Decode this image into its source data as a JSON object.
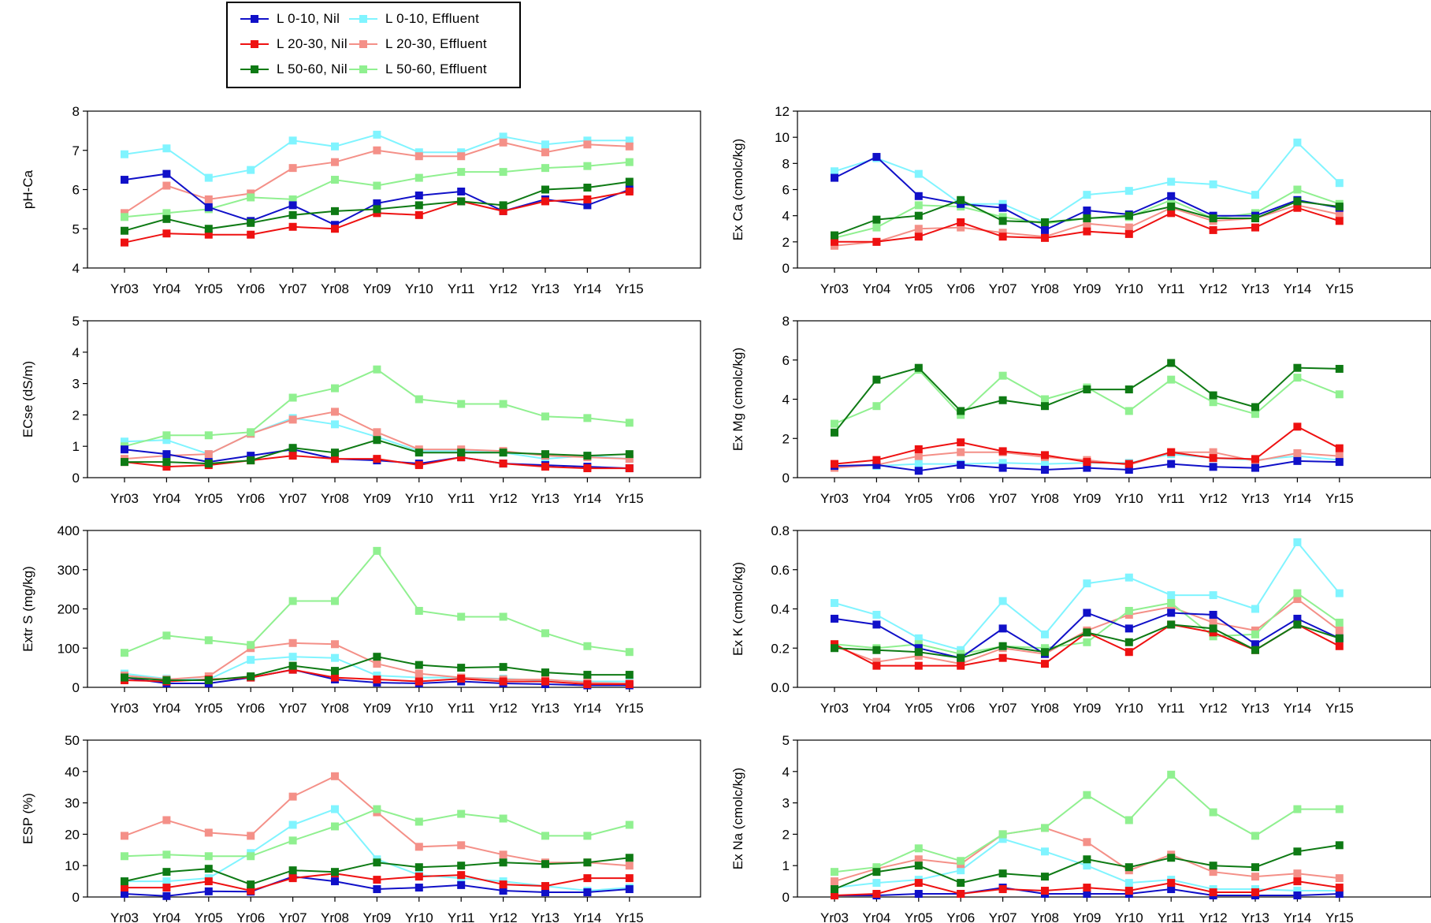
{
  "legend": {
    "series": [
      {
        "name": "L 0-10, Nil",
        "color": "#1010c8"
      },
      {
        "name": "L 0-10, Effluent",
        "color": "#80f4ff"
      },
      {
        "name": "L 20-30, Nil",
        "color": "#ee1111"
      },
      {
        "name": "L 20-30, Effluent",
        "color": "#f49088"
      },
      {
        "name": "L 50-60, Nil",
        "color": "#0e7a14"
      },
      {
        "name": "L 50-60, Effluent",
        "color": "#90f090"
      }
    ]
  },
  "chart_data": [
    {
      "type": "line",
      "id": "ph",
      "ylabel": "pH-Ca",
      "ylim": [
        4,
        8
      ],
      "yticks": [
        4,
        5,
        6,
        7,
        8
      ],
      "grid": false,
      "x": [
        "Yr03",
        "Yr04",
        "Yr05",
        "Yr06",
        "Yr07",
        "Yr08",
        "Yr09",
        "Yr10",
        "Yr11",
        "Yr12",
        "Yr13",
        "Yr14",
        "Yr15"
      ],
      "series": [
        {
          "name": "L 0-10, Nil",
          "values": [
            6.25,
            6.4,
            5.55,
            5.2,
            5.6,
            5.1,
            5.65,
            5.85,
            5.95,
            5.45,
            5.75,
            5.6,
            6.0
          ]
        },
        {
          "name": "L 20-30, Nil",
          "values": [
            4.65,
            4.88,
            4.85,
            4.85,
            5.05,
            5.0,
            5.4,
            5.35,
            5.7,
            5.45,
            5.7,
            5.75,
            5.95
          ]
        },
        {
          "name": "L 50-60, Nil",
          "values": [
            4.95,
            5.25,
            5.0,
            5.15,
            5.35,
            5.45,
            5.5,
            5.6,
            5.7,
            5.6,
            6.0,
            6.05,
            6.2
          ]
        },
        {
          "name": "L 0-10, Effluent",
          "values": [
            6.9,
            7.05,
            6.3,
            6.5,
            7.25,
            7.1,
            7.4,
            6.95,
            6.95,
            7.35,
            7.15,
            7.25,
            7.25
          ]
        },
        {
          "name": "L 20-30, Effluent",
          "values": [
            5.4,
            6.1,
            5.75,
            5.9,
            6.55,
            6.7,
            7.0,
            6.85,
            6.85,
            7.2,
            6.95,
            7.15,
            7.1
          ]
        },
        {
          "name": "L 50-60, Effluent",
          "values": [
            5.3,
            5.4,
            5.5,
            5.8,
            5.75,
            6.25,
            6.1,
            6.3,
            6.45,
            6.45,
            6.55,
            6.6,
            6.7
          ]
        }
      ]
    },
    {
      "type": "line",
      "id": "ca",
      "ylabel": "Ex Ca (cmolc/kg)",
      "ylim": [
        0,
        12
      ],
      "yticks": [
        0,
        2,
        4,
        6,
        8,
        10,
        12
      ],
      "grid": false,
      "x": [
        "Yr03",
        "Yr04",
        "Yr05",
        "Yr06",
        "Yr07",
        "Yr08",
        "Yr09",
        "Yr10",
        "Yr11",
        "Yr12",
        "Yr13",
        "Yr14",
        "Yr15"
      ],
      "series": [
        {
          "name": "L 0-10, Nil",
          "values": [
            6.9,
            8.5,
            5.5,
            4.9,
            4.6,
            2.9,
            4.4,
            4.1,
            5.5,
            4.0,
            4.0,
            5.2,
            4.6
          ]
        },
        {
          "name": "L 20-30, Nil",
          "values": [
            2.0,
            2.0,
            2.4,
            3.5,
            2.4,
            2.3,
            2.8,
            2.6,
            4.2,
            2.9,
            3.1,
            4.6,
            3.6
          ]
        },
        {
          "name": "L 50-60, Nil",
          "values": [
            2.5,
            3.7,
            4.0,
            5.2,
            3.6,
            3.5,
            3.8,
            4.0,
            4.7,
            3.8,
            3.8,
            5.1,
            4.7
          ]
        },
        {
          "name": "L 0-10, Effluent",
          "values": [
            7.4,
            8.4,
            7.2,
            4.9,
            4.9,
            3.5,
            5.6,
            5.9,
            6.6,
            6.4,
            5.6,
            9.6,
            6.5
          ]
        },
        {
          "name": "L 20-30, Effluent",
          "values": [
            1.7,
            2.0,
            3.0,
            3.1,
            2.7,
            2.4,
            3.4,
            3.1,
            4.6,
            3.6,
            3.8,
            4.8,
            4.1
          ]
        },
        {
          "name": "L 50-60, Effluent",
          "values": [
            2.3,
            3.1,
            4.8,
            4.7,
            3.9,
            3.4,
            3.8,
            3.9,
            5.2,
            3.8,
            4.2,
            6.0,
            4.9
          ]
        }
      ]
    },
    {
      "type": "line",
      "id": "ec",
      "ylabel": "ECse (dS/m)",
      "ylim": [
        0,
        5
      ],
      "yticks": [
        0,
        1,
        2,
        3,
        4,
        5
      ],
      "grid": false,
      "x": [
        "Yr03",
        "Yr04",
        "Yr05",
        "Yr06",
        "Yr07",
        "Yr08",
        "Yr09",
        "Yr10",
        "Yr11",
        "Yr12",
        "Yr13",
        "Yr14",
        "Yr15"
      ],
      "series": [
        {
          "name": "L 0-10, Nil",
          "values": [
            0.9,
            0.75,
            0.5,
            0.7,
            0.9,
            0.6,
            0.55,
            0.45,
            0.65,
            0.45,
            0.4,
            0.35,
            0.3
          ]
        },
        {
          "name": "L 20-30, Nil",
          "values": [
            0.5,
            0.35,
            0.4,
            0.55,
            0.7,
            0.6,
            0.6,
            0.4,
            0.65,
            0.45,
            0.35,
            0.3,
            0.3
          ]
        },
        {
          "name": "L 50-60, Nil",
          "values": [
            0.5,
            0.5,
            0.45,
            0.55,
            0.95,
            0.8,
            1.2,
            0.8,
            0.8,
            0.8,
            0.75,
            0.7,
            0.75
          ]
        },
        {
          "name": "L 0-10, Effluent",
          "values": [
            1.15,
            1.2,
            0.75,
            1.4,
            1.9,
            1.7,
            1.3,
            0.85,
            0.85,
            0.8,
            0.6,
            0.7,
            0.6
          ]
        },
        {
          "name": "L 20-30, Effluent",
          "values": [
            0.6,
            0.7,
            0.75,
            1.4,
            1.85,
            2.1,
            1.45,
            0.9,
            0.9,
            0.85,
            0.7,
            0.65,
            0.6
          ]
        },
        {
          "name": "L 50-60, Effluent",
          "values": [
            1.0,
            1.35,
            1.35,
            1.45,
            2.55,
            2.85,
            3.45,
            2.5,
            2.35,
            2.35,
            1.95,
            1.9,
            1.75
          ]
        }
      ]
    },
    {
      "type": "line",
      "id": "mg",
      "ylabel": "Ex Mg (cmolc/kg)",
      "ylim": [
        0,
        8
      ],
      "yticks": [
        0,
        2,
        4,
        6,
        8
      ],
      "grid": false,
      "x": [
        "Yr03",
        "Yr04",
        "Yr05",
        "Yr06",
        "Yr07",
        "Yr08",
        "Yr09",
        "Yr10",
        "Yr11",
        "Yr12",
        "Yr13",
        "Yr14",
        "Yr15"
      ],
      "series": [
        {
          "name": "L 0-10, Nil",
          "values": [
            0.6,
            0.65,
            0.35,
            0.65,
            0.5,
            0.4,
            0.5,
            0.4,
            0.7,
            0.55,
            0.5,
            0.85,
            0.8
          ]
        },
        {
          "name": "L 20-30, Nil",
          "values": [
            0.7,
            0.9,
            1.45,
            1.8,
            1.35,
            1.15,
            0.8,
            0.7,
            1.3,
            1.0,
            0.95,
            2.6,
            1.5
          ]
        },
        {
          "name": "L 50-60, Nil",
          "values": [
            2.3,
            5.0,
            5.6,
            3.4,
            3.95,
            3.65,
            4.5,
            4.5,
            5.85,
            4.2,
            3.6,
            5.6,
            5.55
          ]
        },
        {
          "name": "L 0-10, Effluent",
          "values": [
            0.6,
            0.6,
            0.7,
            0.7,
            0.75,
            0.7,
            0.75,
            0.75,
            1.2,
            1.0,
            0.9,
            1.1,
            0.9
          ]
        },
        {
          "name": "L 20-30, Effluent",
          "values": [
            0.5,
            0.65,
            1.1,
            1.3,
            1.3,
            1.05,
            0.9,
            0.65,
            1.3,
            1.3,
            0.85,
            1.25,
            1.1
          ]
        },
        {
          "name": "L 50-60, Effluent",
          "values": [
            2.75,
            3.65,
            5.5,
            3.2,
            5.2,
            4.0,
            4.6,
            3.4,
            5.0,
            3.85,
            3.25,
            5.1,
            4.25
          ]
        }
      ]
    },
    {
      "type": "line",
      "id": "s",
      "ylabel": "Extr S (mg/kg)",
      "ylim": [
        0,
        400
      ],
      "yticks": [
        0,
        100,
        200,
        300,
        400
      ],
      "grid": false,
      "x": [
        "Yr03",
        "Yr04",
        "Yr05",
        "Yr06",
        "Yr07",
        "Yr08",
        "Yr09",
        "Yr10",
        "Yr11",
        "Yr12",
        "Yr13",
        "Yr14",
        "Yr15"
      ],
      "series": [
        {
          "name": "L 0-10, Nil",
          "values": [
            25,
            10,
            10,
            25,
            45,
            20,
            12,
            10,
            15,
            10,
            8,
            5,
            5
          ]
        },
        {
          "name": "L 20-30, Nil",
          "values": [
            18,
            15,
            20,
            25,
            45,
            25,
            20,
            15,
            22,
            15,
            15,
            8,
            8
          ]
        },
        {
          "name": "L 50-60, Nil",
          "values": [
            25,
            18,
            18,
            28,
            55,
            42,
            78,
            57,
            50,
            52,
            38,
            32,
            32
          ]
        },
        {
          "name": "L 0-10, Effluent",
          "values": [
            35,
            22,
            20,
            70,
            78,
            75,
            30,
            25,
            25,
            22,
            18,
            15,
            15
          ]
        },
        {
          "name": "L 20-30, Effluent",
          "values": [
            30,
            20,
            28,
            100,
            113,
            110,
            60,
            35,
            25,
            20,
            20,
            12,
            10
          ]
        },
        {
          "name": "L 50-60, Effluent",
          "values": [
            88,
            132,
            120,
            108,
            220,
            220,
            348,
            195,
            180,
            180,
            138,
            105,
            90
          ]
        }
      ]
    },
    {
      "type": "line",
      "id": "k",
      "ylabel": "Ex K (cmolc/kg)",
      "ylim": [
        0,
        0.8
      ],
      "yticks": [
        "0.0",
        "0.2",
        "0.4",
        "0.6",
        "0.8"
      ],
      "grid": false,
      "x": [
        "Yr03",
        "Yr04",
        "Yr05",
        "Yr06",
        "Yr07",
        "Yr08",
        "Yr09",
        "Yr10",
        "Yr11",
        "Yr12",
        "Yr13",
        "Yr14",
        "Yr15"
      ],
      "series": [
        {
          "name": "L 0-10, Nil",
          "values": [
            0.35,
            0.32,
            0.2,
            0.15,
            0.3,
            0.17,
            0.38,
            0.3,
            0.38,
            0.37,
            0.22,
            0.35,
            0.25
          ]
        },
        {
          "name": "L 20-30, Nil",
          "values": [
            0.22,
            0.11,
            0.11,
            0.11,
            0.15,
            0.12,
            0.28,
            0.18,
            0.32,
            0.28,
            0.19,
            0.32,
            0.21
          ]
        },
        {
          "name": "L 50-60, Nil",
          "values": [
            0.2,
            0.19,
            0.18,
            0.15,
            0.21,
            0.18,
            0.28,
            0.23,
            0.32,
            0.3,
            0.19,
            0.32,
            0.25
          ]
        },
        {
          "name": "L 0-10, Effluent",
          "values": [
            0.43,
            0.37,
            0.25,
            0.19,
            0.44,
            0.27,
            0.53,
            0.56,
            0.47,
            0.47,
            0.4,
            0.74,
            0.48
          ]
        },
        {
          "name": "L 20-30, Effluent",
          "values": [
            0.21,
            0.13,
            0.16,
            0.12,
            0.2,
            0.17,
            0.29,
            0.37,
            0.41,
            0.33,
            0.29,
            0.45,
            0.29
          ]
        },
        {
          "name": "L 50-60, Effluent",
          "values": [
            0.22,
            0.2,
            0.22,
            0.17,
            0.21,
            0.2,
            0.23,
            0.39,
            0.43,
            0.26,
            0.27,
            0.48,
            0.33
          ]
        }
      ]
    },
    {
      "type": "line",
      "id": "esp",
      "ylabel": "ESP (%)",
      "ylim": [
        0,
        50
      ],
      "yticks": [
        0,
        10,
        20,
        30,
        40,
        50
      ],
      "grid": false,
      "x": [
        "Yr03",
        "Yr04",
        "Yr05",
        "Yr06",
        "Yr07",
        "Yr08",
        "Yr09",
        "Yr10",
        "Yr11",
        "Yr12",
        "Yr13",
        "Yr14",
        "Yr15"
      ],
      "series": [
        {
          "name": "L 0-10, Nil",
          "values": [
            1.0,
            0.3,
            1.8,
            1.7,
            6.5,
            5.0,
            2.5,
            3.0,
            3.8,
            2.0,
            1.5,
            1.5,
            2.5
          ]
        },
        {
          "name": "L 20-30, Nil",
          "values": [
            3.0,
            3.0,
            5.0,
            2.0,
            6.0,
            7.5,
            5.5,
            6.5,
            7.0,
            4.0,
            3.5,
            6.0,
            6.0
          ]
        },
        {
          "name": "L 50-60, Nil",
          "values": [
            5.0,
            8.0,
            9.0,
            4.0,
            8.5,
            8.0,
            11.0,
            9.5,
            10.0,
            11.0,
            10.5,
            11.0,
            12.5
          ]
        },
        {
          "name": "L 0-10, Effluent",
          "values": [
            5.0,
            5.0,
            6.0,
            14.0,
            23.0,
            28.0,
            12.0,
            7.0,
            6.0,
            5.0,
            3.5,
            2.0,
            3.0
          ]
        },
        {
          "name": "L 20-30, Effluent",
          "values": [
            19.5,
            24.5,
            20.5,
            19.5,
            32.0,
            38.5,
            27.0,
            16.0,
            16.5,
            13.5,
            11.0,
            11.0,
            10.0
          ]
        },
        {
          "name": "L 50-60, Effluent",
          "values": [
            13.0,
            13.5,
            13.0,
            13.0,
            18.0,
            22.5,
            28.0,
            24.0,
            26.5,
            25.0,
            19.5,
            19.5,
            23.0
          ]
        }
      ]
    },
    {
      "type": "line",
      "id": "na",
      "ylabel": "Ex Na (cmolc/kg)",
      "ylim": [
        0,
        5
      ],
      "yticks": [
        0,
        1,
        2,
        3,
        4,
        5
      ],
      "grid": false,
      "x": [
        "Yr03",
        "Yr04",
        "Yr05",
        "Yr06",
        "Yr07",
        "Yr08",
        "Yr09",
        "Yr10",
        "Yr11",
        "Yr12",
        "Yr13",
        "Yr14",
        "Yr15"
      ],
      "series": [
        {
          "name": "L 0-10, Nil",
          "values": [
            0.05,
            0.05,
            0.1,
            0.1,
            0.3,
            0.1,
            0.1,
            0.1,
            0.25,
            0.05,
            0.05,
            0.05,
            0.1
          ]
        },
        {
          "name": "L 20-30, Nil",
          "values": [
            0.05,
            0.1,
            0.45,
            0.1,
            0.25,
            0.2,
            0.3,
            0.2,
            0.45,
            0.15,
            0.15,
            0.5,
            0.3
          ]
        },
        {
          "name": "L 50-60, Nil",
          "values": [
            0.25,
            0.8,
            1.0,
            0.45,
            0.75,
            0.65,
            1.2,
            0.95,
            1.25,
            1.0,
            0.95,
            1.45,
            1.65
          ]
        },
        {
          "name": "L 0-10, Effluent",
          "values": [
            0.3,
            0.45,
            0.55,
            0.85,
            1.85,
            1.45,
            1.0,
            0.45,
            0.55,
            0.25,
            0.25,
            0.2,
            0.2
          ]
        },
        {
          "name": "L 20-30, Effluent",
          "values": [
            0.5,
            0.9,
            1.2,
            1.05,
            2.0,
            2.2,
            1.75,
            0.85,
            1.35,
            0.8,
            0.65,
            0.75,
            0.6
          ]
        },
        {
          "name": "L 50-60, Effluent",
          "values": [
            0.8,
            0.95,
            1.55,
            1.15,
            2.0,
            2.2,
            3.25,
            2.45,
            3.9,
            2.7,
            1.95,
            2.8,
            2.8
          ]
        }
      ]
    }
  ]
}
